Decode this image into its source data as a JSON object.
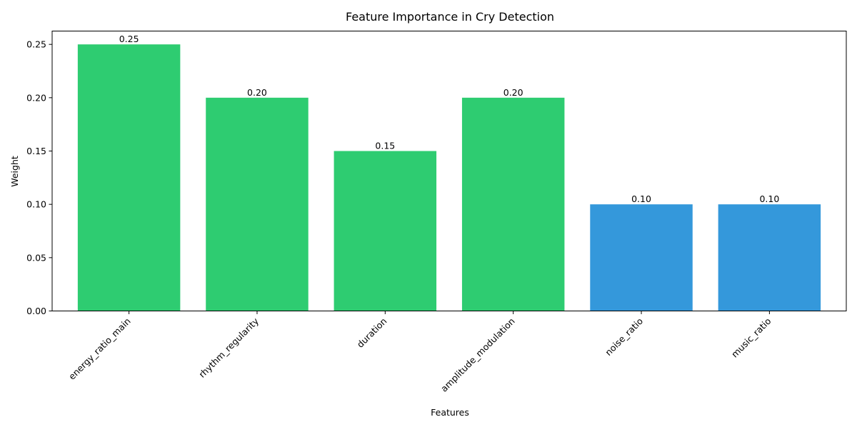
{
  "chart_data": {
    "type": "bar",
    "title": "Feature Importance in Cry Detection",
    "xlabel": "Features",
    "ylabel": "Weight",
    "categories": [
      "energy_ratio_main",
      "rhythm_regularity",
      "duration",
      "amplitude_modulation",
      "noise_ratio",
      "music_ratio"
    ],
    "values": [
      0.25,
      0.2,
      0.15,
      0.2,
      0.1,
      0.1
    ],
    "value_labels": [
      "0.25",
      "0.20",
      "0.15",
      "0.20",
      "0.10",
      "0.10"
    ],
    "bar_colors": [
      "#2ecc71",
      "#2ecc71",
      "#2ecc71",
      "#2ecc71",
      "#3498db",
      "#3498db"
    ],
    "ylim": [
      0,
      0.2625
    ],
    "yticks": [
      0.0,
      0.05,
      0.1,
      0.15,
      0.2,
      0.25
    ],
    "ytick_labels": [
      "0.00",
      "0.05",
      "0.10",
      "0.15",
      "0.20",
      "0.25"
    ],
    "grid": false,
    "legend": "none"
  }
}
